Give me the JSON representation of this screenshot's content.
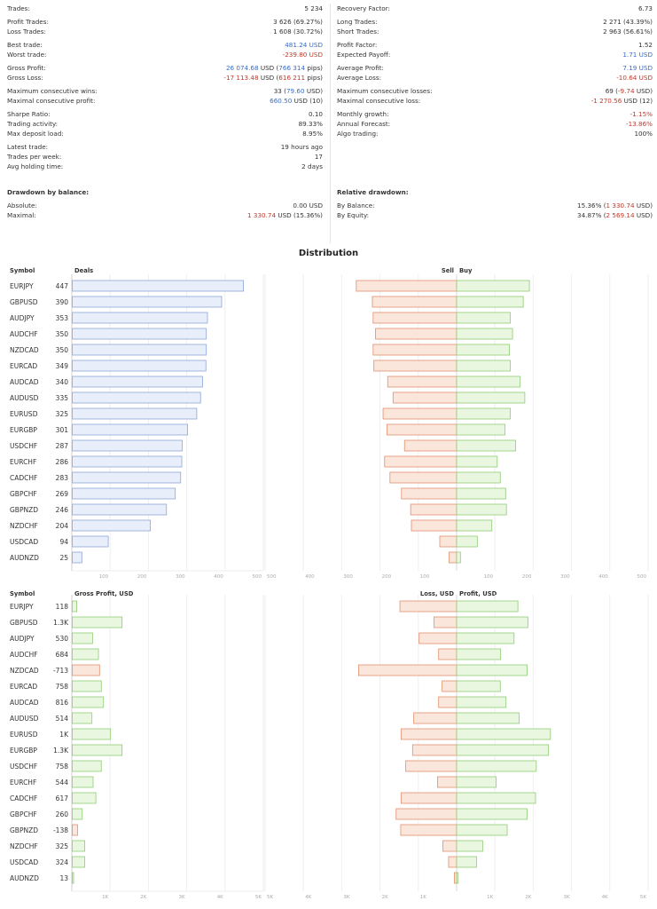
{
  "stats_left": [
    [
      {
        "label": "Trades:",
        "value": "5 234"
      }
    ],
    [
      {
        "label": "Profit Trades:",
        "value": "3 626 (69.27%)"
      },
      {
        "label": "Loss Trades:",
        "value": "1 608 (30.72%)"
      }
    ],
    [
      {
        "label": "Best trade:",
        "value": "481.24 USD",
        "color": "blue"
      },
      {
        "label": "Worst trade:",
        "value": "-239.80 USD",
        "color": "red"
      }
    ],
    [
      {
        "label": "Gross Profit:",
        "parts": [
          {
            "t": "26 074.68",
            "c": "blue"
          },
          {
            "t": " USD ("
          },
          {
            "t": "766 314",
            "c": "blue"
          },
          {
            "t": " pips)"
          }
        ]
      },
      {
        "label": "Gross Loss:",
        "parts": [
          {
            "t": "-17 113.48",
            "c": "red"
          },
          {
            "t": " USD ("
          },
          {
            "t": "616 211",
            "c": "red"
          },
          {
            "t": " pips)"
          }
        ]
      }
    ],
    [
      {
        "label": "Maximum consecutive wins:",
        "parts": [
          {
            "t": "33 ("
          },
          {
            "t": "79.60",
            "c": "blue"
          },
          {
            "t": " USD)"
          }
        ]
      },
      {
        "label": "Maximal consecutive profit:",
        "parts": [
          {
            "t": "660.50",
            "c": "blue"
          },
          {
            "t": " USD (10)"
          }
        ]
      }
    ],
    [
      {
        "label": "Sharpe Ratio:",
        "value": "0.10"
      },
      {
        "label": "Trading activity:",
        "value": "89.33%"
      },
      {
        "label": "Max deposit load:",
        "value": "8.95%"
      }
    ],
    [
      {
        "label": "Latest trade:",
        "value": "19 hours ago"
      },
      {
        "label": "Trades per week:",
        "value": "17"
      },
      {
        "label": "Avg holding time:",
        "value": "2 days"
      }
    ]
  ],
  "stats_right": [
    [
      {
        "label": "Recovery Factor:",
        "value": "6.73"
      }
    ],
    [
      {
        "label": "Long Trades:",
        "value": "2 271 (43.39%)"
      },
      {
        "label": "Short Trades:",
        "value": "2 963 (56.61%)"
      }
    ],
    [
      {
        "label": "Profit Factor:",
        "value": "1.52"
      },
      {
        "label": "Expected Payoff:",
        "value": "1.71 USD",
        "color": "blue"
      }
    ],
    [
      {
        "label": "Average Profit:",
        "value": "7.19 USD",
        "color": "blue"
      },
      {
        "label": "Average Loss:",
        "value": "-10.64 USD",
        "color": "red"
      }
    ],
    [
      {
        "label": "Maximum consecutive losses:",
        "parts": [
          {
            "t": "69 ("
          },
          {
            "t": "-9.74",
            "c": "red"
          },
          {
            "t": " USD)"
          }
        ]
      },
      {
        "label": "Maximal consecutive loss:",
        "parts": [
          {
            "t": "-1 270.56",
            "c": "red"
          },
          {
            "t": " USD (12)"
          }
        ]
      }
    ],
    [
      {
        "label": "Monthly growth:",
        "value": "-1.15%",
        "color": "red"
      },
      {
        "label": "Annual Forecast:",
        "value": "-13.86%",
        "color": "red"
      },
      {
        "label": "Algo trading:",
        "value": "100%"
      }
    ]
  ],
  "drawdown_balance": {
    "title": "Drawdown by balance:",
    "rows": [
      {
        "label": "Absolute:",
        "value": "0.00 USD"
      },
      {
        "label": "Maximal:",
        "parts": [
          {
            "t": "1 330.74",
            "c": "red"
          },
          {
            "t": " USD (15.36%)"
          }
        ]
      }
    ]
  },
  "drawdown_relative": {
    "title": "Relative drawdown:",
    "rows": [
      {
        "label": "By Balance:",
        "parts": [
          {
            "t": "15.36% ("
          },
          {
            "t": "1 330.74",
            "c": "red"
          },
          {
            "t": " USD)"
          }
        ]
      },
      {
        "label": "By Equity:",
        "parts": [
          {
            "t": "34.87% ("
          },
          {
            "t": "2 569.14",
            "c": "red"
          },
          {
            "t": " USD)"
          }
        ]
      }
    ]
  },
  "distribution_title": "Distribution",
  "colors": {
    "deals_fill": "#e8eefa",
    "deals_stroke": "#8ea6d8",
    "sell_fill": "#fbe6dc",
    "sell_stroke": "#e0906e",
    "buy_fill": "#e9f7e1",
    "buy_stroke": "#8fcb74",
    "grid": "#eeeeee"
  },
  "chart_data": [
    {
      "type": "bar",
      "symbol_header": "Symbol",
      "deals_header": "Deals",
      "sell_label": "Sell",
      "buy_label": "Buy",
      "symbols": [
        "EURJPY",
        "GBPUSD",
        "AUDJPY",
        "AUDCHF",
        "NZDCAD",
        "EURCAD",
        "AUDCAD",
        "AUDUSD",
        "EURUSD",
        "EURGBP",
        "USDCHF",
        "EURCHF",
        "CADCHF",
        "GBPCHF",
        "GBPNZD",
        "NZDCHF",
        "USDCAD",
        "AUDNZD"
      ],
      "deals": [
        447,
        390,
        353,
        350,
        350,
        349,
        340,
        335,
        325,
        301,
        287,
        286,
        283,
        269,
        246,
        204,
        94,
        25
      ],
      "sell": [
        262,
        220,
        218,
        212,
        218,
        216,
        180,
        166,
        192,
        182,
        136,
        188,
        174,
        144,
        120,
        118,
        44,
        20
      ],
      "buy": [
        190,
        174,
        140,
        146,
        138,
        140,
        166,
        178,
        140,
        126,
        154,
        106,
        114,
        128,
        130,
        92,
        54,
        10
      ],
      "deals_ticks": [
        "100",
        "200",
        "300",
        "400",
        "500"
      ],
      "deals_xlim": [
        0,
        500
      ],
      "sellbuy_ticks": [
        "500",
        "400",
        "300",
        "200",
        "100",
        "100",
        "200",
        "300",
        "400",
        "500"
      ],
      "sellbuy_xlim": [
        -500,
        500
      ]
    },
    {
      "type": "bar",
      "symbol_header": "Symbol",
      "gross_header": "Gross Profit, USD",
      "loss_label": "Loss, USD",
      "profit_label": "Profit, USD",
      "symbols": [
        "EURJPY",
        "GBPUSD",
        "AUDJPY",
        "AUDCHF",
        "NZDCAD",
        "EURCAD",
        "AUDCAD",
        "AUDUSD",
        "EURUSD",
        "EURGBP",
        "USDCHF",
        "EURCHF",
        "CADCHF",
        "GBPCHF",
        "GBPNZD",
        "NZDCHF",
        "USDCAD",
        "AUDNZD"
      ],
      "gross_labels": [
        "118",
        "1.3K",
        "530",
        "684",
        "-713",
        "758",
        "816",
        "514",
        "1K",
        "1.3K",
        "758",
        "544",
        "617",
        "260",
        "-138",
        "325",
        "324",
        "13"
      ],
      "gross": [
        118,
        1300,
        530,
        684,
        -713,
        758,
        816,
        514,
        1000,
        1300,
        758,
        544,
        617,
        260,
        -138,
        325,
        324,
        13
      ],
      "loss": [
        1480,
        590,
        980,
        470,
        2560,
        380,
        470,
        1120,
        1450,
        1150,
        1330,
        500,
        1450,
        1580,
        1460,
        360,
        210,
        60
      ],
      "profit": [
        1600,
        1860,
        1500,
        1150,
        1840,
        1140,
        1290,
        1630,
        2450,
        2400,
        2080,
        1030,
        2060,
        1840,
        1320,
        680,
        520,
        40
      ],
      "gross_ticks": [
        "1K",
        "2K",
        "3K",
        "4K",
        "5K"
      ],
      "gross_xlim": [
        0,
        5000
      ],
      "lp_ticks": [
        "5K",
        "4K",
        "3K",
        "2K",
        "1K",
        "1K",
        "2K",
        "3K",
        "4K",
        "5K"
      ],
      "lp_xlim": [
        -5000,
        5000
      ]
    }
  ]
}
